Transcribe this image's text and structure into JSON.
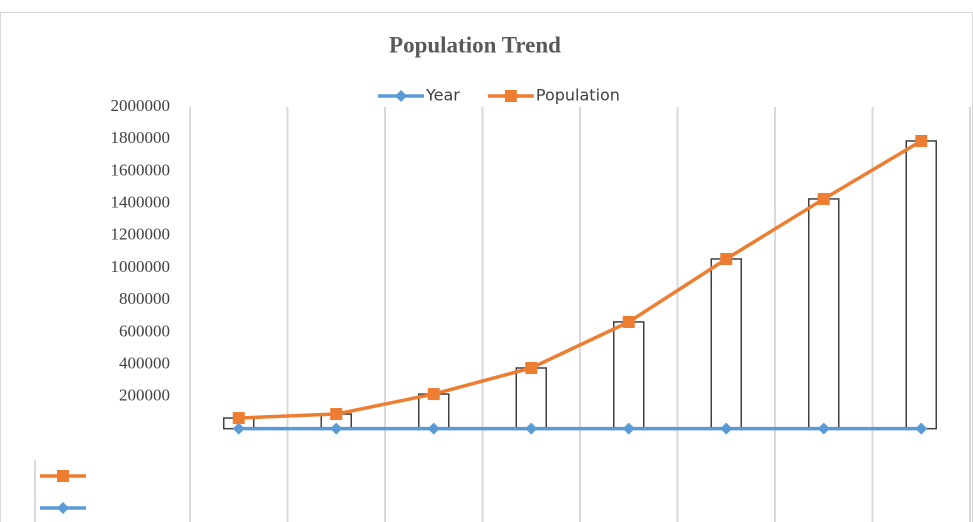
{
  "chart_data": {
    "type": "line",
    "title": "Population Trend",
    "categories": [
      null,
      null,
      null,
      null,
      null,
      null,
      null,
      null
    ],
    "series": [
      {
        "name": "Year",
        "color": "#5b9bd5",
        "marker": "diamond",
        "values": [
          1950,
          1960,
          1970,
          1980,
          1990,
          2000,
          2010,
          2020
        ]
      },
      {
        "name": "Population",
        "color": "#ed7d31",
        "marker": "square",
        "values": [
          68000,
          93000,
          217000,
          379000,
          665000,
          1056000,
          1429000,
          1789000
        ]
      }
    ],
    "up_down_bars": true,
    "ylim": [
      0,
      2000000
    ],
    "yticks": [
      200000,
      400000,
      600000,
      800000,
      1000000,
      1200000,
      1400000,
      1600000,
      1800000,
      2000000
    ],
    "grid": true,
    "legend": "top",
    "data_table": true
  }
}
